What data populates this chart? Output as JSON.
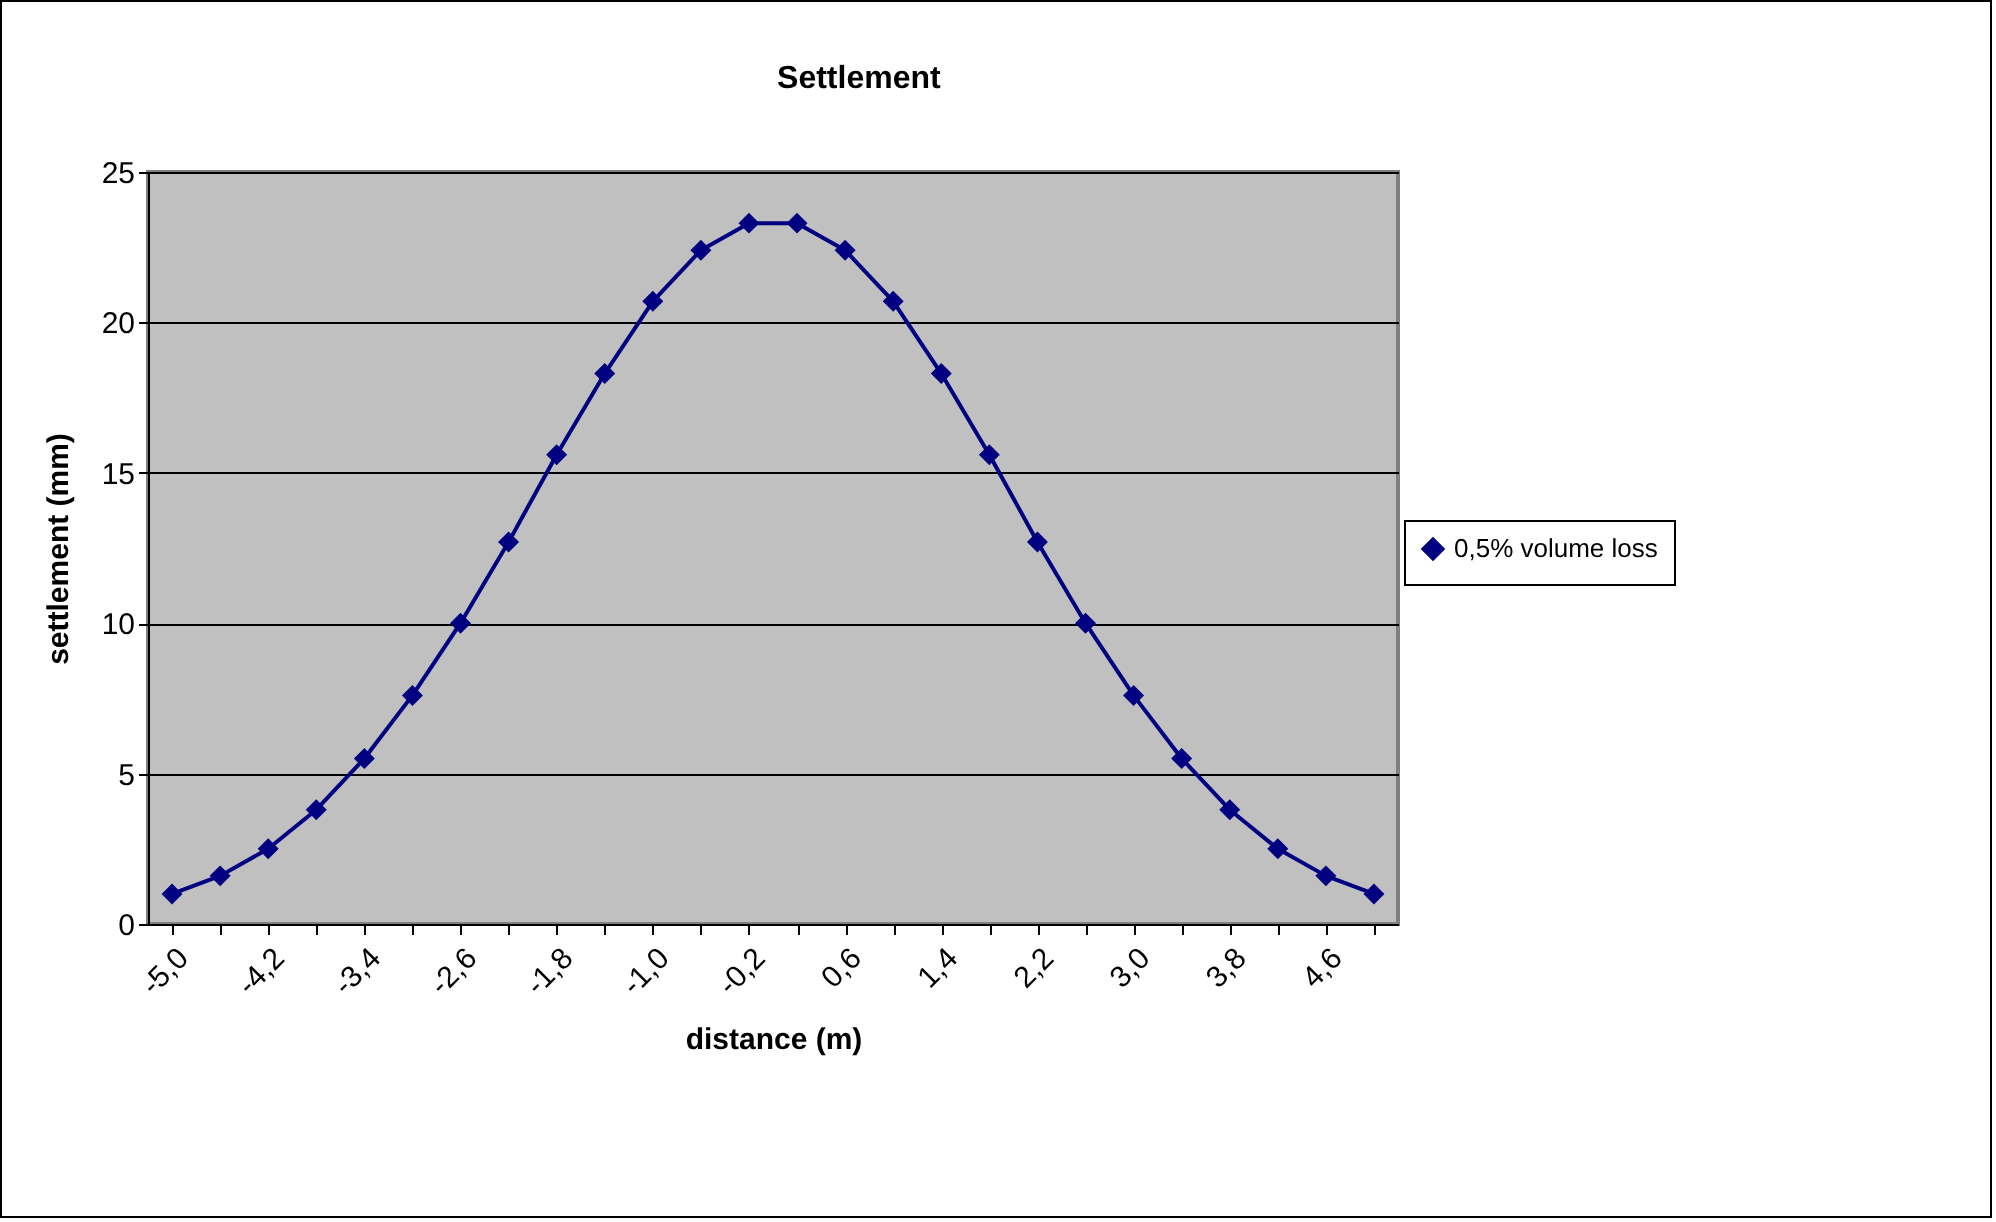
{
  "chart_data": {
    "type": "line",
    "title": "Settlement",
    "xlabel": "distance (m)",
    "ylabel": "settlement (mm)",
    "categories": [
      "-5,0",
      null,
      "-4,2",
      null,
      "-3,4",
      null,
      "-2,6",
      null,
      "-1,8",
      null,
      "-1,0",
      null,
      "-0,2",
      null,
      "0,6",
      null,
      "1,4",
      null,
      "2,2",
      null,
      "3,0",
      null,
      "3,8",
      null,
      "4,6",
      null
    ],
    "series": [
      {
        "name": "0,5% volume loss",
        "color": "#000080",
        "values": [
          1.0,
          1.6,
          2.5,
          3.8,
          5.5,
          7.6,
          10.0,
          12.7,
          15.6,
          18.3,
          20.7,
          22.4,
          23.3,
          23.3,
          22.4,
          20.7,
          18.3,
          15.6,
          12.7,
          10.0,
          7.6,
          5.5,
          3.8,
          2.5,
          1.6,
          1.0
        ]
      }
    ],
    "ylim": [
      0,
      25
    ],
    "yticks": [
      0,
      5,
      10,
      15,
      20,
      25
    ],
    "grid": "y",
    "legend": "right",
    "marker": "diamond",
    "line_style": "solid"
  }
}
